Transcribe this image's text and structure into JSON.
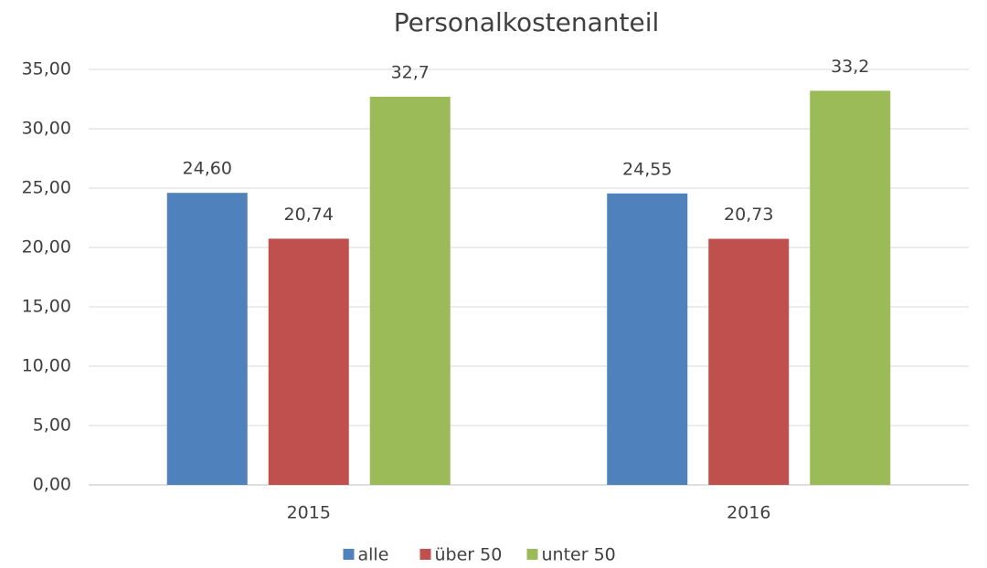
{
  "chart_data": {
    "type": "bar",
    "title": "Personalkostenanteil",
    "categories": [
      "2015",
      "2016"
    ],
    "series": [
      {
        "name": "alle",
        "color": "#4f81bd",
        "values": [
          24.6,
          24.55
        ],
        "value_labels": [
          "24,60",
          "24,55"
        ]
      },
      {
        "name": "über 50",
        "color": "#c0504d",
        "values": [
          20.74,
          20.73
        ],
        "value_labels": [
          "20,74",
          "20,73"
        ]
      },
      {
        "name": "unter 50",
        "color": "#9bbb59",
        "values": [
          32.7,
          33.2
        ],
        "value_labels": [
          "32,7",
          "33,2"
        ]
      }
    ],
    "ylim": [
      0,
      35
    ],
    "yticks": [
      {
        "value": 0,
        "label": "0,00"
      },
      {
        "value": 5,
        "label": "5,00"
      },
      {
        "value": 10,
        "label": "10,00"
      },
      {
        "value": 15,
        "label": "15,00"
      },
      {
        "value": 20,
        "label": "20,00"
      },
      {
        "value": 25,
        "label": "25,00"
      },
      {
        "value": 30,
        "label": "30,00"
      },
      {
        "value": 35,
        "label": "35,00"
      }
    ],
    "grid": true,
    "legend": "bottom"
  }
}
